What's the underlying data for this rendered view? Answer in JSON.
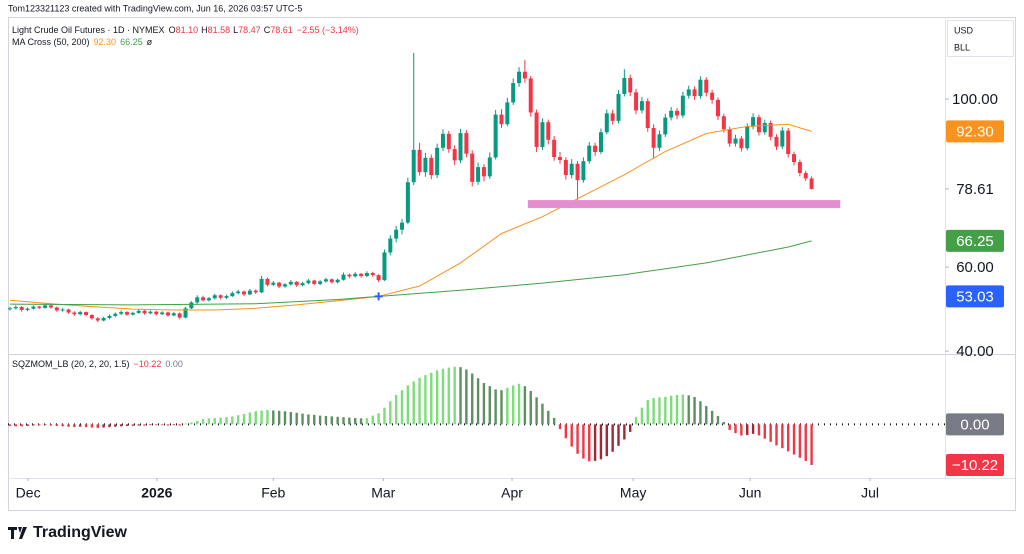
{
  "attribution": "Tom123321123 created with TradingView.com, Jun 16, 2026 03:57 UTC-5",
  "footer": "TradingView",
  "currency": "USD",
  "unit": "BLL",
  "chart_data": [
    {
      "type": "candlestick",
      "title": "Light Crude Oil Futures · 1D · NYMEX",
      "ohlc": [
        [
          "O",
          "81.10"
        ],
        [
          "H",
          "81.58"
        ],
        [
          "L",
          "78.47"
        ],
        [
          "C",
          "78.61"
        ]
      ],
      "change": "−2.55 (−3.14%)",
      "up_color": "#089981",
      "down_color": "#f23645",
      "xlim": [
        -0.34,
        159.8
      ],
      "xticks": [
        {
          "value": 3.1,
          "label": "Dec"
        },
        {
          "value": 25.1,
          "label": "2026"
        },
        {
          "value": 45,
          "label": "Feb"
        },
        {
          "value": 63.8,
          "label": "Mar"
        },
        {
          "value": 85.8,
          "label": "Apr"
        },
        {
          "value": 106.5,
          "label": "May"
        },
        {
          "value": 126.5,
          "label": "Jun"
        },
        {
          "value": 147,
          "label": "Jul"
        }
      ],
      "ylim": [
        39.8,
        120
      ],
      "yticks": [
        {
          "value": 100,
          "label": "100.00"
        },
        {
          "value": 78.61,
          "label": "78.61"
        },
        {
          "value": 60,
          "label": "60.00"
        },
        {
          "value": 40,
          "label": "40.00"
        }
      ],
      "grid": false,
      "zone": {
        "x": [
          88.5,
          141.9
        ],
        "value": 75,
        "color": "#e38fd0"
      },
      "candles": [
        [
          50.0,
          50.6,
          49.7,
          50.2
        ],
        [
          50.2,
          50.9,
          49.9,
          50.5
        ],
        [
          50.5,
          50.7,
          49.4,
          49.8
        ],
        [
          49.8,
          50.4,
          49.5,
          50.1
        ],
        [
          50.1,
          50.9,
          49.9,
          50.6
        ],
        [
          50.6,
          50.8,
          50.0,
          50.3
        ],
        [
          50.3,
          51.3,
          50.1,
          50.9
        ],
        [
          50.9,
          51.1,
          50.1,
          50.4
        ],
        [
          50.4,
          50.6,
          49.4,
          49.7
        ],
        [
          49.7,
          50.3,
          49.4,
          49.9
        ],
        [
          49.9,
          50.1,
          48.9,
          49.2
        ],
        [
          49.2,
          49.5,
          48.4,
          48.8
        ],
        [
          48.8,
          49.6,
          48.5,
          49.3
        ],
        [
          49.3,
          49.4,
          48.3,
          48.6
        ],
        [
          48.6,
          48.8,
          47.5,
          47.8
        ],
        [
          47.8,
          48.1,
          46.9,
          47.3
        ],
        [
          47.3,
          48.2,
          47.1,
          47.9
        ],
        [
          47.9,
          48.7,
          47.6,
          48.4
        ],
        [
          48.4,
          49.2,
          48.1,
          48.9
        ],
        [
          48.9,
          49.7,
          48.6,
          49.3
        ],
        [
          49.3,
          49.5,
          48.4,
          48.7
        ],
        [
          48.7,
          49.4,
          48.5,
          49.1
        ],
        [
          49.1,
          49.9,
          48.9,
          49.6
        ],
        [
          49.6,
          49.8,
          48.7,
          49.0
        ],
        [
          49.0,
          49.7,
          48.8,
          49.4
        ],
        [
          49.4,
          49.6,
          48.5,
          48.8
        ],
        [
          48.8,
          49.5,
          48.6,
          49.2
        ],
        [
          49.2,
          49.4,
          48.2,
          48.5
        ],
        [
          48.5,
          49.3,
          48.3,
          49.0
        ],
        [
          49.0,
          49.2,
          47.6,
          48.0
        ],
        [
          48.0,
          50.5,
          47.8,
          50.2
        ],
        [
          50.2,
          51.9,
          50.0,
          51.6
        ],
        [
          51.6,
          53.3,
          51.3,
          52.8
        ],
        [
          52.8,
          53.2,
          51.8,
          52.1
        ],
        [
          52.1,
          52.9,
          51.8,
          52.6
        ],
        [
          52.6,
          53.7,
          52.3,
          53.3
        ],
        [
          53.3,
          53.5,
          52.3,
          52.7
        ],
        [
          52.7,
          53.4,
          52.4,
          53.1
        ],
        [
          53.1,
          54.2,
          52.9,
          53.8
        ],
        [
          53.8,
          54.6,
          53.5,
          54.2
        ],
        [
          54.2,
          54.4,
          53.1,
          53.5
        ],
        [
          53.5,
          54.8,
          53.3,
          54.4
        ],
        [
          54.4,
          54.7,
          53.6,
          54.0
        ],
        [
          54.0,
          57.9,
          53.8,
          57.2
        ],
        [
          57.2,
          57.5,
          55.4,
          55.8
        ],
        [
          55.8,
          56.7,
          55.5,
          56.3
        ],
        [
          56.3,
          56.5,
          55.0,
          55.4
        ],
        [
          55.4,
          56.2,
          55.1,
          55.9
        ],
        [
          55.9,
          56.9,
          55.6,
          56.5
        ],
        [
          56.5,
          56.7,
          55.3,
          55.7
        ],
        [
          55.7,
          56.5,
          55.4,
          56.2
        ],
        [
          56.2,
          57.2,
          55.9,
          56.8
        ],
        [
          56.8,
          57.0,
          55.7,
          56.0
        ],
        [
          56.0,
          56.9,
          55.7,
          56.6
        ],
        [
          56.6,
          57.5,
          56.3,
          57.1
        ],
        [
          57.1,
          57.3,
          56.1,
          56.4
        ],
        [
          56.4,
          57.3,
          56.1,
          57.0
        ],
        [
          57.0,
          58.7,
          56.8,
          58.2
        ],
        [
          58.2,
          58.5,
          57.4,
          57.8
        ],
        [
          57.8,
          58.8,
          57.5,
          58.4
        ],
        [
          58.4,
          58.6,
          57.5,
          57.9
        ],
        [
          57.9,
          59.0,
          57.6,
          58.6
        ],
        [
          58.6,
          58.9,
          57.7,
          58.1
        ],
        [
          58.1,
          58.3,
          56.4,
          56.9
        ],
        [
          56.9,
          64.2,
          56.7,
          63.5
        ],
        [
          63.5,
          67.6,
          62.8,
          66.8
        ],
        [
          66.8,
          69.8,
          65.9,
          68.9
        ],
        [
          68.9,
          71.5,
          67.8,
          70.6
        ],
        [
          70.6,
          81.3,
          70.2,
          80.2
        ],
        [
          80.2,
          111.0,
          79.5,
          87.9
        ],
        [
          87.9,
          89.6,
          81.8,
          82.6
        ],
        [
          82.6,
          87.2,
          81.5,
          86.0
        ],
        [
          86.0,
          86.8,
          80.9,
          81.9
        ],
        [
          81.9,
          89.4,
          81.2,
          88.4
        ],
        [
          88.4,
          92.8,
          87.6,
          91.7
        ],
        [
          91.7,
          92.4,
          87.2,
          88.1
        ],
        [
          88.1,
          89.0,
          84.3,
          85.4
        ],
        [
          85.4,
          92.9,
          84.8,
          91.9
        ],
        [
          91.9,
          92.6,
          86.1,
          87.0
        ],
        [
          87.0,
          87.8,
          79.2,
          80.3
        ],
        [
          80.3,
          84.9,
          79.6,
          83.8
        ],
        [
          83.8,
          84.5,
          80.4,
          81.6
        ],
        [
          81.6,
          87.3,
          81.0,
          86.1
        ],
        [
          86.1,
          97.4,
          85.6,
          96.3
        ],
        [
          96.3,
          97.6,
          93.1,
          94.0
        ],
        [
          94.0,
          100.3,
          93.5,
          99.2
        ],
        [
          99.2,
          104.9,
          98.6,
          103.8
        ],
        [
          103.8,
          107.6,
          102.9,
          106.5
        ],
        [
          106.5,
          109.3,
          103.9,
          104.9
        ],
        [
          104.9,
          105.5,
          95.8,
          96.8
        ],
        [
          96.8,
          97.5,
          87.4,
          88.6
        ],
        [
          88.6,
          95.4,
          87.9,
          94.5
        ],
        [
          94.5,
          95.1,
          89.2,
          90.3
        ],
        [
          90.3,
          91.2,
          85.3,
          86.2
        ],
        [
          86.2,
          87.4,
          84.6,
          85.5
        ],
        [
          85.5,
          86.1,
          80.8,
          81.9
        ],
        [
          81.9,
          85.7,
          81.1,
          84.6
        ],
        [
          84.6,
          85.3,
          76.0,
          80.7
        ],
        [
          80.7,
          86.1,
          80.1,
          85.2
        ],
        [
          85.2,
          89.8,
          84.6,
          88.9
        ],
        [
          88.9,
          89.6,
          86.5,
          87.4
        ],
        [
          87.4,
          93.0,
          86.9,
          92.1
        ],
        [
          92.1,
          97.5,
          91.6,
          96.6
        ],
        [
          96.6,
          97.4,
          93.9,
          94.8
        ],
        [
          94.8,
          102.1,
          94.2,
          101.2
        ],
        [
          101.2,
          107.1,
          100.6,
          105.0
        ],
        [
          105.0,
          105.8,
          100.7,
          101.6
        ],
        [
          101.6,
          102.4,
          96.4,
          97.3
        ],
        [
          97.3,
          100.5,
          96.6,
          99.5
        ],
        [
          99.5,
          100.2,
          92.2,
          93.1
        ],
        [
          93.1,
          94.0,
          85.8,
          88.4
        ],
        [
          88.4,
          92.5,
          87.6,
          91.6
        ],
        [
          91.6,
          96.5,
          91.0,
          95.6
        ],
        [
          95.6,
          98.1,
          94.9,
          97.2
        ],
        [
          97.2,
          97.9,
          95.2,
          96.1
        ],
        [
          96.1,
          101.7,
          95.5,
          100.8
        ],
        [
          100.8,
          103.2,
          100.1,
          102.3
        ],
        [
          102.3,
          103.0,
          99.8,
          100.7
        ],
        [
          100.7,
          105.4,
          100.1,
          104.6
        ],
        [
          104.6,
          105.2,
          100.6,
          101.5
        ],
        [
          101.5,
          102.2,
          98.9,
          99.8
        ],
        [
          99.8,
          100.4,
          95.0,
          95.9
        ],
        [
          95.9,
          96.5,
          92.0,
          92.8
        ],
        [
          92.8,
          93.4,
          88.6,
          89.4
        ],
        [
          89.4,
          91.5,
          88.7,
          90.6
        ],
        [
          90.6,
          91.2,
          87.5,
          88.3
        ],
        [
          88.3,
          94.2,
          87.8,
          93.4
        ],
        [
          93.4,
          96.6,
          92.8,
          95.7
        ],
        [
          95.7,
          96.3,
          91.3,
          92.1
        ],
        [
          92.1,
          95.1,
          91.5,
          94.3
        ],
        [
          94.3,
          94.9,
          90.2,
          91.0
        ],
        [
          91.0,
          91.6,
          87.9,
          88.7
        ],
        [
          88.7,
          93.3,
          88.1,
          92.5
        ],
        [
          92.5,
          93.1,
          86.1,
          86.9
        ],
        [
          86.9,
          87.5,
          84.2,
          85.0
        ],
        [
          85.0,
          85.6,
          81.6,
          82.4
        ],
        [
          82.4,
          82.9,
          80.5,
          81.1
        ],
        [
          81.1,
          81.58,
          78.47,
          78.61
        ]
      ],
      "indicator": {
        "title": "MA Cross (50, 200)",
        "extra": "ø",
        "series": [
          {
            "color": "#f7931e",
            "x": [
              0,
              7,
              14,
              21,
              28,
              35,
              42,
              49,
              56,
              63,
              70,
              77,
              84,
              91,
              98,
              105,
              112,
              119,
              126,
              133,
              137
            ],
            "values": [
              52.1,
              51.3,
              50.6,
              50.0,
              49.8,
              49.8,
              50.2,
              51.0,
              52.0,
              53.03,
              55.5,
              61,
              68,
              72,
              77,
              82,
              87.5,
              91.8,
              93.5,
              94.0,
              92.3
            ],
            "last_label": "92.30"
          },
          {
            "color": "#43a047",
            "x": [
              0,
              21,
              42,
              56,
              63,
              77,
              91,
              105,
              119,
              133,
              137
            ],
            "values": [
              51.2,
              51.0,
              51.3,
              52.3,
              53.03,
              54.5,
              56.2,
              58.2,
              61.0,
              64.8,
              66.25
            ],
            "last_label": "66.25"
          }
        ],
        "cross": {
          "x": 63,
          "value": 53.03,
          "label": "53.03",
          "color": "#2962ff"
        }
      }
    },
    {
      "type": "histogram",
      "title": "SQZMOM_LB (20, 2, 20, 1.5)",
      "legend_values": [
        "−10.22",
        "0.00"
      ],
      "ylim": [
        -13.5,
        17.2
      ],
      "yticks": [
        {
          "value": 0,
          "label": "0.00"
        }
      ],
      "zero_color": "#787b86",
      "colors": {
        "pos_rising": "#7fdc7b",
        "pos_falling": "#5e8f62",
        "neg_falling": "#f23645",
        "neg_rising": "#9c2a38"
      },
      "last_label": "−10.22",
      "values": [
        -0.4,
        -0.5,
        -0.5,
        -0.4,
        -0.3,
        -0.3,
        -0.2,
        -0.3,
        -0.4,
        -0.5,
        -0.6,
        -0.7,
        -0.6,
        -0.7,
        -0.8,
        -0.9,
        -0.8,
        -0.7,
        -0.6,
        -0.5,
        -0.4,
        -0.4,
        -0.3,
        -0.3,
        -0.2,
        -0.2,
        -0.2,
        -0.3,
        -0.2,
        -0.3,
        0.2,
        0.5,
        0.9,
        1.3,
        1.5,
        1.6,
        1.7,
        1.8,
        2.0,
        2.3,
        2.6,
        3.0,
        3.3,
        3.5,
        3.6,
        3.5,
        3.4,
        3.3,
        3.1,
        2.9,
        2.7,
        2.5,
        2.4,
        2.2,
        2.1,
        2.0,
        1.9,
        1.8,
        1.7,
        1.6,
        1.5,
        1.6,
        2.2,
        2.8,
        4.2,
        5.8,
        7.4,
        8.6,
        9.8,
        10.8,
        11.7,
        12.4,
        13.0,
        13.6,
        14.0,
        14.3,
        14.5,
        14.4,
        13.8,
        12.8,
        11.6,
        10.4,
        9.6,
        8.8,
        8.6,
        9.2,
        9.8,
        10.2,
        9.6,
        8.4,
        6.8,
        5.2,
        3.4,
        1.6,
        -1.2,
        -3.5,
        -5.6,
        -7.4,
        -8.6,
        -9.3,
        -9.2,
        -8.8,
        -8.0,
        -6.9,
        -5.4,
        -3.8,
        -1.9,
        1.8,
        4.2,
        6.1,
        6.6,
        6.8,
        6.9,
        7.2,
        7.4,
        7.5,
        7.3,
        6.9,
        5.8,
        4.6,
        3.4,
        2.1,
        0.6,
        -1.4,
        -2.2,
        -2.8,
        -2.7,
        -2.4,
        -2.8,
        -3.6,
        -4.4,
        -5.3,
        -6.0,
        -6.8,
        -7.6,
        -8.4,
        -9.2,
        -10.22
      ]
    }
  ]
}
